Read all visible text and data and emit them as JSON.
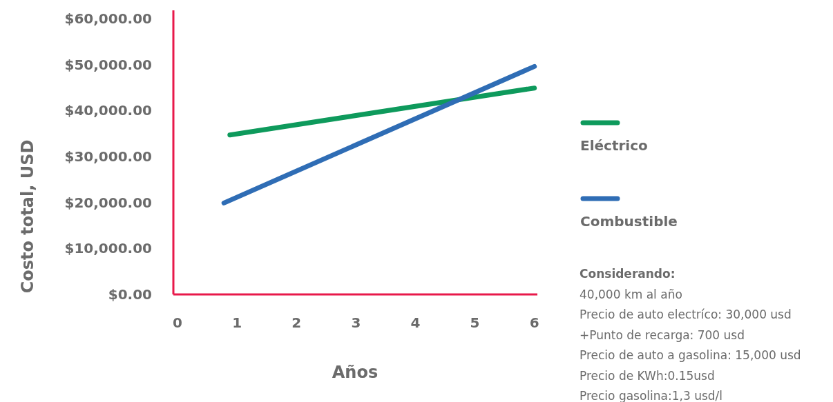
{
  "chart_data": {
    "type": "line",
    "ylabel": "Costo total, USD",
    "xlabel": "Años",
    "xlim": [
      -0.07,
      6.05
    ],
    "xticks": [
      0,
      1,
      2,
      3,
      4,
      5,
      6
    ],
    "ylim": [
      0,
      61800
    ],
    "yticks": [
      {
        "value": 0,
        "label": "$0.00"
      },
      {
        "value": 10000,
        "label": "$10,000.00"
      },
      {
        "value": 20000,
        "label": "$20,000.00"
      },
      {
        "value": 30000,
        "label": "$30,000.00"
      },
      {
        "value": 40000,
        "label": "$40,000.00"
      },
      {
        "value": 50000,
        "label": "$50,000.00"
      },
      {
        "value": 60000,
        "label": "$60,000.00"
      }
    ],
    "series": [
      {
        "name": "Eléctrico",
        "color": "#0e9a5c",
        "x": [
          0.88,
          6
        ],
        "values": [
          34700,
          44900
        ]
      },
      {
        "name": "Combustible",
        "color": "#2f6db5",
        "x": [
          0.78,
          6
        ],
        "values": [
          19900,
          49600
        ]
      }
    ],
    "legend": "right",
    "grid": false,
    "marker": "none",
    "line_style": "solid",
    "annotations": [
      "Considerando:",
      "40,000 km al año",
      "Precio de auto electríco: 30,000 usd",
      "+Punto de recarga: 700 usd",
      "Precio de auto a gasolina: 15,000 usd",
      "Precio de KWh:0.15usd",
      "Precio gasolina:1,3 usd/l"
    ]
  }
}
